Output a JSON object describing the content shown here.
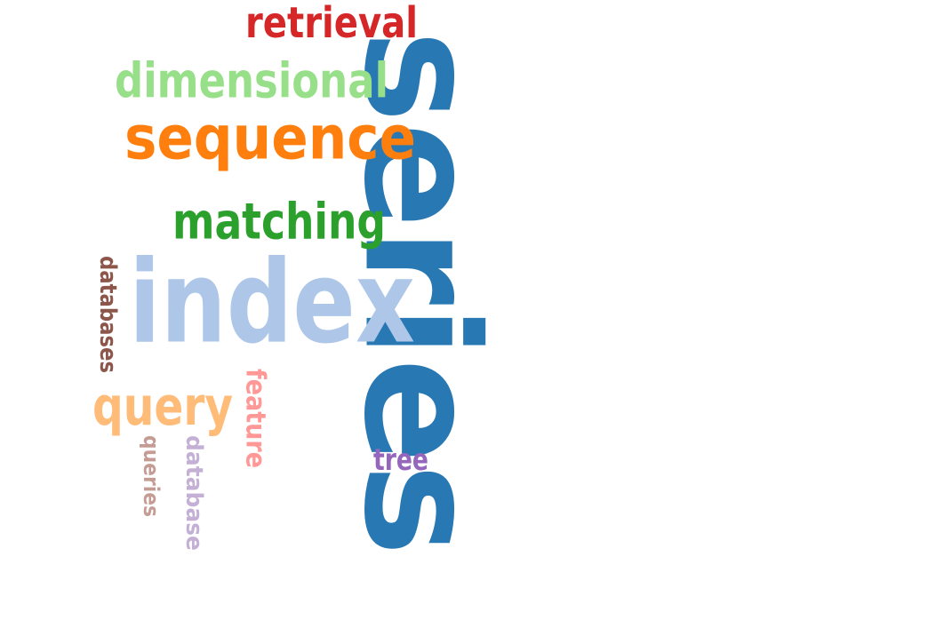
{
  "words": [
    {
      "text": "series",
      "color": "#2878b4",
      "vertical": true
    },
    {
      "text": "index",
      "color": "#aec7e8",
      "vertical": false
    },
    {
      "text": "sequence",
      "color": "#ff7f0e",
      "vertical": false
    },
    {
      "text": "matching",
      "color": "#2ca02c",
      "vertical": false
    },
    {
      "text": "dimensional",
      "color": "#98df8a",
      "vertical": false
    },
    {
      "text": "retrieval",
      "color": "#d62728",
      "vertical": false
    },
    {
      "text": "query",
      "color": "#ffbb78",
      "vertical": false
    },
    {
      "text": "feature",
      "color": "#ff9896",
      "vertical": true
    },
    {
      "text": "databases",
      "color": "#8c564b",
      "vertical": true
    },
    {
      "text": "database",
      "color": "#c5b0d5",
      "vertical": true
    },
    {
      "text": "queries",
      "color": "#c49c94",
      "vertical": true
    },
    {
      "text": "tree",
      "color": "#9467bd",
      "vertical": false
    }
  ]
}
